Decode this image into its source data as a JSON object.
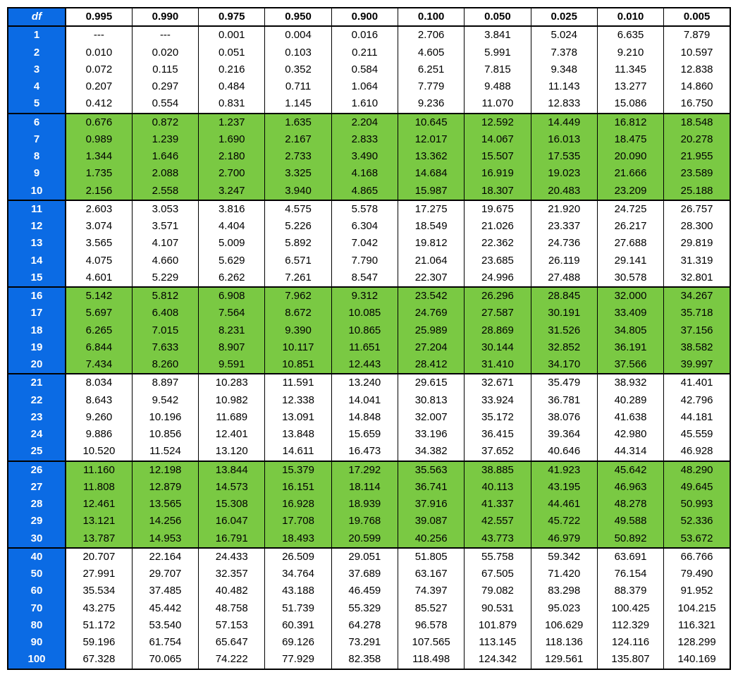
{
  "table": {
    "header_label": "df",
    "columns": [
      "0.995",
      "0.990",
      "0.975",
      "0.950",
      "0.900",
      "0.100",
      "0.050",
      "0.025",
      "0.010",
      "0.005"
    ],
    "highlight_color": "#7ac943",
    "df_bg": "#0b6be4",
    "df_color": "#ffffff",
    "groups": [
      {
        "highlight": false,
        "rows": [
          {
            "df": "1",
            "v": [
              "---",
              "---",
              "0.001",
              "0.004",
              "0.016",
              "2.706",
              "3.841",
              "5.024",
              "6.635",
              "7.879"
            ]
          },
          {
            "df": "2",
            "v": [
              "0.010",
              "0.020",
              "0.051",
              "0.103",
              "0.211",
              "4.605",
              "5.991",
              "7.378",
              "9.210",
              "10.597"
            ]
          },
          {
            "df": "3",
            "v": [
              "0.072",
              "0.115",
              "0.216",
              "0.352",
              "0.584",
              "6.251",
              "7.815",
              "9.348",
              "11.345",
              "12.838"
            ]
          },
          {
            "df": "4",
            "v": [
              "0.207",
              "0.297",
              "0.484",
              "0.711",
              "1.064",
              "7.779",
              "9.488",
              "11.143",
              "13.277",
              "14.860"
            ]
          },
          {
            "df": "5",
            "v": [
              "0.412",
              "0.554",
              "0.831",
              "1.145",
              "1.610",
              "9.236",
              "11.070",
              "12.833",
              "15.086",
              "16.750"
            ]
          }
        ]
      },
      {
        "highlight": true,
        "rows": [
          {
            "df": "6",
            "v": [
              "0.676",
              "0.872",
              "1.237",
              "1.635",
              "2.204",
              "10.645",
              "12.592",
              "14.449",
              "16.812",
              "18.548"
            ]
          },
          {
            "df": "7",
            "v": [
              "0.989",
              "1.239",
              "1.690",
              "2.167",
              "2.833",
              "12.017",
              "14.067",
              "16.013",
              "18.475",
              "20.278"
            ]
          },
          {
            "df": "8",
            "v": [
              "1.344",
              "1.646",
              "2.180",
              "2.733",
              "3.490",
              "13.362",
              "15.507",
              "17.535",
              "20.090",
              "21.955"
            ]
          },
          {
            "df": "9",
            "v": [
              "1.735",
              "2.088",
              "2.700",
              "3.325",
              "4.168",
              "14.684",
              "16.919",
              "19.023",
              "21.666",
              "23.589"
            ]
          },
          {
            "df": "10",
            "v": [
              "2.156",
              "2.558",
              "3.247",
              "3.940",
              "4.865",
              "15.987",
              "18.307",
              "20.483",
              "23.209",
              "25.188"
            ]
          }
        ]
      },
      {
        "highlight": false,
        "rows": [
          {
            "df": "11",
            "v": [
              "2.603",
              "3.053",
              "3.816",
              "4.575",
              "5.578",
              "17.275",
              "19.675",
              "21.920",
              "24.725",
              "26.757"
            ]
          },
          {
            "df": "12",
            "v": [
              "3.074",
              "3.571",
              "4.404",
              "5.226",
              "6.304",
              "18.549",
              "21.026",
              "23.337",
              "26.217",
              "28.300"
            ]
          },
          {
            "df": "13",
            "v": [
              "3.565",
              "4.107",
              "5.009",
              "5.892",
              "7.042",
              "19.812",
              "22.362",
              "24.736",
              "27.688",
              "29.819"
            ]
          },
          {
            "df": "14",
            "v": [
              "4.075",
              "4.660",
              "5.629",
              "6.571",
              "7.790",
              "21.064",
              "23.685",
              "26.119",
              "29.141",
              "31.319"
            ]
          },
          {
            "df": "15",
            "v": [
              "4.601",
              "5.229",
              "6.262",
              "7.261",
              "8.547",
              "22.307",
              "24.996",
              "27.488",
              "30.578",
              "32.801"
            ]
          }
        ]
      },
      {
        "highlight": true,
        "rows": [
          {
            "df": "16",
            "v": [
              "5.142",
              "5.812",
              "6.908",
              "7.962",
              "9.312",
              "23.542",
              "26.296",
              "28.845",
              "32.000",
              "34.267"
            ]
          },
          {
            "df": "17",
            "v": [
              "5.697",
              "6.408",
              "7.564",
              "8.672",
              "10.085",
              "24.769",
              "27.587",
              "30.191",
              "33.409",
              "35.718"
            ]
          },
          {
            "df": "18",
            "v": [
              "6.265",
              "7.015",
              "8.231",
              "9.390",
              "10.865",
              "25.989",
              "28.869",
              "31.526",
              "34.805",
              "37.156"
            ]
          },
          {
            "df": "19",
            "v": [
              "6.844",
              "7.633",
              "8.907",
              "10.117",
              "11.651",
              "27.204",
              "30.144",
              "32.852",
              "36.191",
              "38.582"
            ]
          },
          {
            "df": "20",
            "v": [
              "7.434",
              "8.260",
              "9.591",
              "10.851",
              "12.443",
              "28.412",
              "31.410",
              "34.170",
              "37.566",
              "39.997"
            ]
          }
        ]
      },
      {
        "highlight": false,
        "rows": [
          {
            "df": "21",
            "v": [
              "8.034",
              "8.897",
              "10.283",
              "11.591",
              "13.240",
              "29.615",
              "32.671",
              "35.479",
              "38.932",
              "41.401"
            ]
          },
          {
            "df": "22",
            "v": [
              "8.643",
              "9.542",
              "10.982",
              "12.338",
              "14.041",
              "30.813",
              "33.924",
              "36.781",
              "40.289",
              "42.796"
            ]
          },
          {
            "df": "23",
            "v": [
              "9.260",
              "10.196",
              "11.689",
              "13.091",
              "14.848",
              "32.007",
              "35.172",
              "38.076",
              "41.638",
              "44.181"
            ]
          },
          {
            "df": "24",
            "v": [
              "9.886",
              "10.856",
              "12.401",
              "13.848",
              "15.659",
              "33.196",
              "36.415",
              "39.364",
              "42.980",
              "45.559"
            ]
          },
          {
            "df": "25",
            "v": [
              "10.520",
              "11.524",
              "13.120",
              "14.611",
              "16.473",
              "34.382",
              "37.652",
              "40.646",
              "44.314",
              "46.928"
            ]
          }
        ]
      },
      {
        "highlight": true,
        "rows": [
          {
            "df": "26",
            "v": [
              "11.160",
              "12.198",
              "13.844",
              "15.379",
              "17.292",
              "35.563",
              "38.885",
              "41.923",
              "45.642",
              "48.290"
            ]
          },
          {
            "df": "27",
            "v": [
              "11.808",
              "12.879",
              "14.573",
              "16.151",
              "18.114",
              "36.741",
              "40.113",
              "43.195",
              "46.963",
              "49.645"
            ]
          },
          {
            "df": "28",
            "v": [
              "12.461",
              "13.565",
              "15.308",
              "16.928",
              "18.939",
              "37.916",
              "41.337",
              "44.461",
              "48.278",
              "50.993"
            ]
          },
          {
            "df": "29",
            "v": [
              "13.121",
              "14.256",
              "16.047",
              "17.708",
              "19.768",
              "39.087",
              "42.557",
              "45.722",
              "49.588",
              "52.336"
            ]
          },
          {
            "df": "30",
            "v": [
              "13.787",
              "14.953",
              "16.791",
              "18.493",
              "20.599",
              "40.256",
              "43.773",
              "46.979",
              "50.892",
              "53.672"
            ]
          }
        ]
      },
      {
        "highlight": false,
        "rows": [
          {
            "df": "40",
            "v": [
              "20.707",
              "22.164",
              "24.433",
              "26.509",
              "29.051",
              "51.805",
              "55.758",
              "59.342",
              "63.691",
              "66.766"
            ]
          },
          {
            "df": "50",
            "v": [
              "27.991",
              "29.707",
              "32.357",
              "34.764",
              "37.689",
              "63.167",
              "67.505",
              "71.420",
              "76.154",
              "79.490"
            ]
          },
          {
            "df": "60",
            "v": [
              "35.534",
              "37.485",
              "40.482",
              "43.188",
              "46.459",
              "74.397",
              "79.082",
              "83.298",
              "88.379",
              "91.952"
            ]
          },
          {
            "df": "70",
            "v": [
              "43.275",
              "45.442",
              "48.758",
              "51.739",
              "55.329",
              "85.527",
              "90.531",
              "95.023",
              "100.425",
              "104.215"
            ]
          },
          {
            "df": "80",
            "v": [
              "51.172",
              "53.540",
              "57.153",
              "60.391",
              "64.278",
              "96.578",
              "101.879",
              "106.629",
              "112.329",
              "116.321"
            ]
          },
          {
            "df": "90",
            "v": [
              "59.196",
              "61.754",
              "65.647",
              "69.126",
              "73.291",
              "107.565",
              "113.145",
              "118.136",
              "124.116",
              "128.299"
            ]
          },
          {
            "df": "100",
            "v": [
              "67.328",
              "70.065",
              "74.222",
              "77.929",
              "82.358",
              "118.498",
              "124.342",
              "129.561",
              "135.807",
              "140.169"
            ]
          }
        ]
      }
    ]
  }
}
